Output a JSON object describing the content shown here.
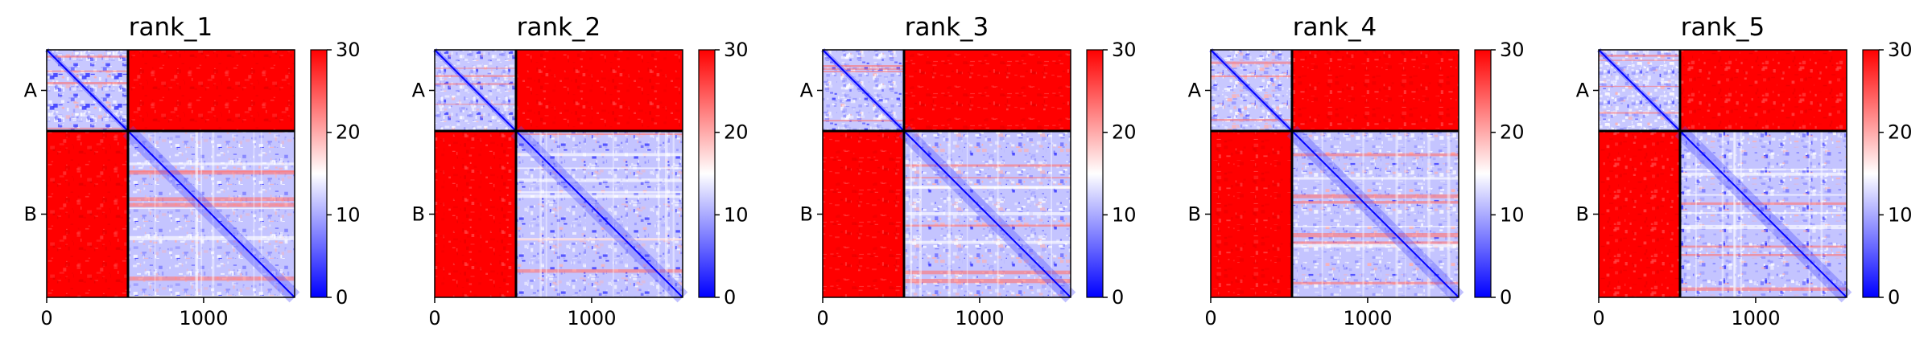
{
  "colors": {
    "low": "#0000ff",
    "mid": "#ffffff",
    "high": "#ff0000",
    "frame": "#000000"
  },
  "chart_data": [
    {
      "type": "heatmap",
      "title": "rank_1",
      "x_ticks": [
        0,
        1000
      ],
      "x_ticklabels": [
        "0",
        "1000"
      ],
      "y_ticklabels": [
        "A",
        "B"
      ],
      "chain_lengths": {
        "A": 518,
        "B": 1062
      },
      "xlim": [
        0,
        1580
      ],
      "colorbar": {
        "range": [
          0,
          30
        ],
        "ticks": [
          0,
          10,
          20,
          30
        ],
        "colormap": "bwr"
      }
    },
    {
      "type": "heatmap",
      "title": "rank_2",
      "x_ticks": [
        0,
        1000
      ],
      "x_ticklabels": [
        "0",
        "1000"
      ],
      "y_ticklabels": [
        "A",
        "B"
      ],
      "chain_lengths": {
        "A": 518,
        "B": 1062
      },
      "xlim": [
        0,
        1580
      ],
      "colorbar": {
        "range": [
          0,
          30
        ],
        "ticks": [
          0,
          10,
          20,
          30
        ],
        "colormap": "bwr"
      }
    },
    {
      "type": "heatmap",
      "title": "rank_3",
      "x_ticks": [
        0,
        1000
      ],
      "x_ticklabels": [
        "0",
        "1000"
      ],
      "y_ticklabels": [
        "A",
        "B"
      ],
      "chain_lengths": {
        "A": 518,
        "B": 1062
      },
      "xlim": [
        0,
        1580
      ],
      "colorbar": {
        "range": [
          0,
          30
        ],
        "ticks": [
          0,
          10,
          20,
          30
        ],
        "colormap": "bwr"
      }
    },
    {
      "type": "heatmap",
      "title": "rank_4",
      "x_ticks": [
        0,
        1000
      ],
      "x_ticklabels": [
        "0",
        "1000"
      ],
      "y_ticklabels": [
        "A",
        "B"
      ],
      "chain_lengths": {
        "A": 518,
        "B": 1062
      },
      "xlim": [
        0,
        1580
      ],
      "colorbar": {
        "range": [
          0,
          30
        ],
        "ticks": [
          0,
          10,
          20,
          30
        ],
        "colormap": "bwr"
      }
    },
    {
      "type": "heatmap",
      "title": "rank_5",
      "x_ticks": [
        0,
        1000
      ],
      "x_ticklabels": [
        "0",
        "1000"
      ],
      "y_ticklabels": [
        "A",
        "B"
      ],
      "chain_lengths": {
        "A": 518,
        "B": 1062
      },
      "xlim": [
        0,
        1580
      ],
      "colorbar": {
        "range": [
          0,
          30
        ],
        "ticks": [
          0,
          10,
          20,
          30
        ],
        "colormap": "bwr"
      }
    }
  ]
}
